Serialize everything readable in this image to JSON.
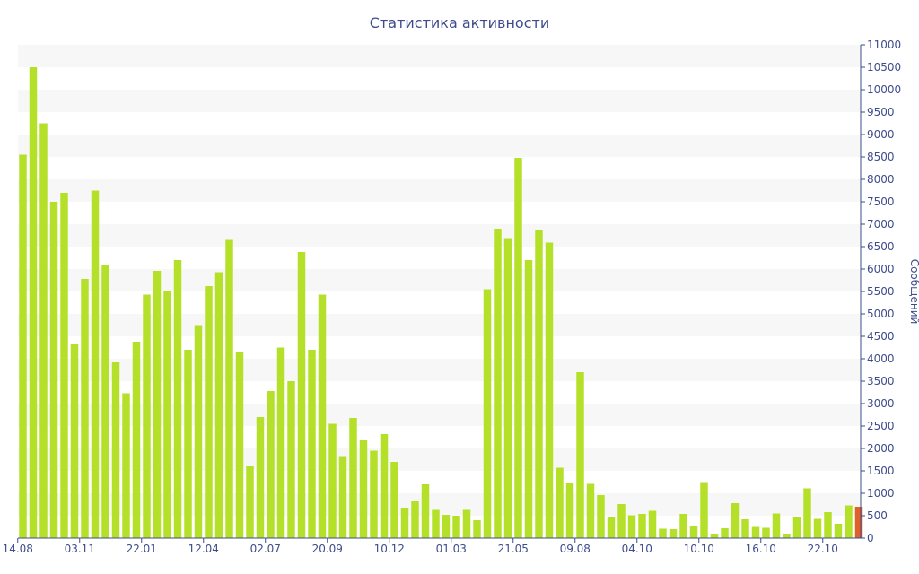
{
  "chart_data": {
    "type": "bar",
    "title": "Статистика активности",
    "xlabel": "",
    "ylabel": "Сообщений",
    "y_axis_position": "right",
    "ylim": [
      0,
      11000
    ],
    "y_ticks": [
      0,
      500,
      1000,
      1500,
      2000,
      2500,
      3000,
      3500,
      4000,
      4500,
      5000,
      5500,
      6000,
      6500,
      7000,
      7500,
      8000,
      8500,
      9000,
      9500,
      10000,
      10500,
      11000
    ],
    "x_tick_labels": [
      {
        "index": 0,
        "label": "14.08"
      },
      {
        "index": 6,
        "label": "03.11"
      },
      {
        "index": 12,
        "label": "22.01"
      },
      {
        "index": 18,
        "label": "12.04"
      },
      {
        "index": 24,
        "label": "02.07"
      },
      {
        "index": 30,
        "label": "20.09"
      },
      {
        "index": 36,
        "label": "10.12"
      },
      {
        "index": 42,
        "label": "01.03"
      },
      {
        "index": 48,
        "label": "21.05"
      },
      {
        "index": 54,
        "label": "09.08"
      },
      {
        "index": 60,
        "label": "04.10"
      },
      {
        "index": 66,
        "label": "10.10"
      },
      {
        "index": 72,
        "label": "16.10"
      },
      {
        "index": 78,
        "label": "22.10"
      }
    ],
    "grid": "horizontal alternating bands",
    "colors": {
      "bar": "#b5e02a",
      "highlight": "#e0602c",
      "text": "#3e4c8c",
      "band": "#f7f7f7"
    },
    "highlight_index": 81,
    "values": [
      8550,
      10500,
      9250,
      7500,
      7700,
      4320,
      5780,
      7750,
      6100,
      3920,
      3230,
      4380,
      5430,
      5960,
      5520,
      6200,
      4200,
      4750,
      5620,
      5930,
      6650,
      4150,
      1600,
      2700,
      3280,
      4250,
      3500,
      6380,
      4200,
      5430,
      2550,
      1830,
      2680,
      2180,
      1950,
      2320,
      1700,
      680,
      820,
      1200,
      630,
      520,
      500,
      630,
      400,
      5550,
      6900,
      6690,
      8480,
      6200,
      6870,
      6590,
      1570,
      1240,
      3700,
      1210,
      960,
      460,
      760,
      510,
      540,
      610,
      210,
      200,
      540,
      280,
      1250,
      100,
      220,
      780,
      420,
      250,
      230,
      550,
      100,
      480,
      1110,
      430,
      580,
      320,
      730,
      700
    ]
  }
}
